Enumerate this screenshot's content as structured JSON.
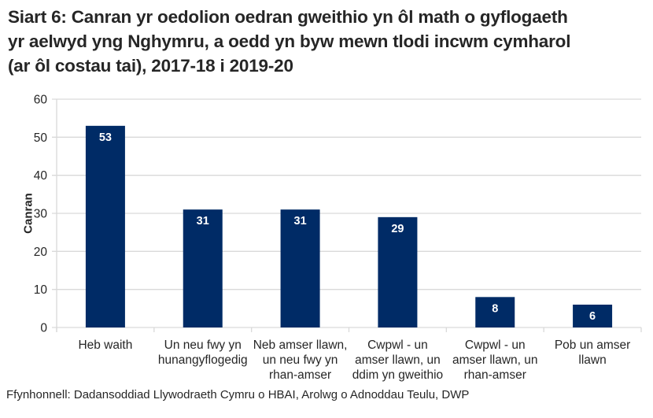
{
  "title": "Siart 6: Canran yr oedolion oedran gweithio yn ôl math o gyflogaeth\nyr aelwyd yng Nghymru, a oedd yn byw mewn tlodi incwm cymharol\n(ar ôl costau tai), 2017-18 i 2019-20",
  "source": "Ffynhonnell: Dadansoddiad Llywodraeth Cymru o HBAI, Arolwg o Adnoddau Teulu, DWP",
  "colors": {
    "bar": "#002b66",
    "grid": "#d9d9d9",
    "text": "#262626",
    "label": "#ffffff"
  },
  "chart_data": {
    "type": "bar",
    "title": "Siart 6: Canran yr oedolion oedran gweithio yn ôl math o gyflogaeth yr aelwyd yng Nghymru, a oedd yn byw mewn tlodi incwm cymharol (ar ôl costau tai), 2017-18 i 2019-20",
    "xlabel": "",
    "ylabel": "Canran",
    "ylim": [
      0,
      60
    ],
    "yticks": [
      0,
      10,
      20,
      30,
      40,
      50,
      60
    ],
    "grid": true,
    "legend": "none",
    "categories": [
      "Heb waith",
      "Un neu fwy yn hunangyflogedig",
      "Neb amser llawn, un neu fwy yn rhan-amser",
      "Cwpwl - un amser llawn, un ddim yn gweithio",
      "Cwpwl - un amser llawn, un rhan-amser",
      "Pob un amser llawn"
    ],
    "category_lines": [
      [
        "Heb waith"
      ],
      [
        "Un neu fwy yn",
        "hunangyflogedig"
      ],
      [
        "Neb amser llawn,",
        "un neu fwy yn",
        "rhan-amser"
      ],
      [
        "Cwpwl - un",
        "amser llawn, un",
        "ddim yn gweithio"
      ],
      [
        "Cwpwl - un",
        "amser llawn, un",
        "rhan-amser"
      ],
      [
        "Pob un amser",
        "llawn"
      ]
    ],
    "values": [
      53,
      31,
      31,
      29,
      8,
      6
    ],
    "data_labels": true
  }
}
